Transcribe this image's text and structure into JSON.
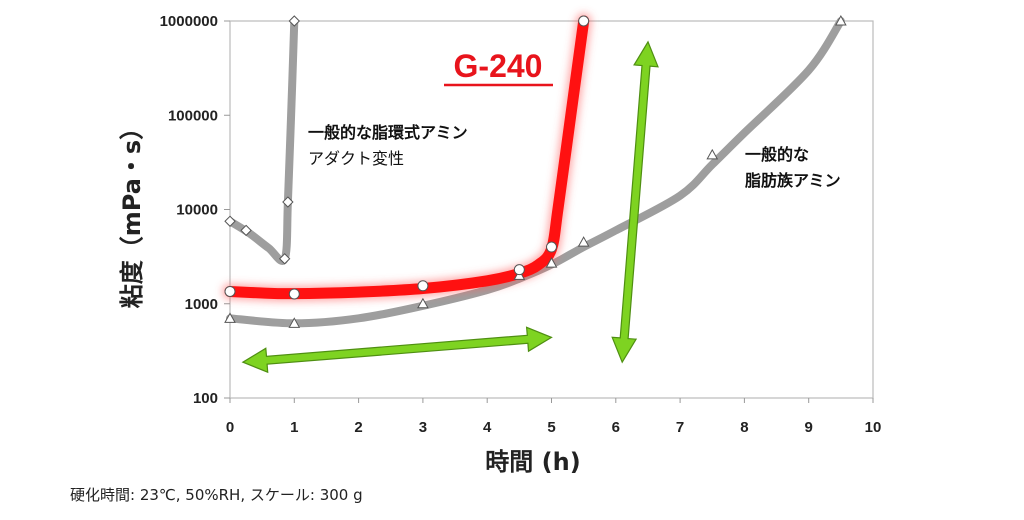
{
  "chart_data": {
    "type": "line",
    "xlabel": "時間 (h)",
    "ylabel": "粘度（mPa・s）",
    "xlim": [
      0,
      10
    ],
    "ylim": [
      100,
      1000000
    ],
    "yscale": "log",
    "x_ticks": [
      "0",
      "1",
      "2",
      "3",
      "4",
      "5",
      "6",
      "7",
      "8",
      "9",
      "10"
    ],
    "y_ticks": [
      "100",
      "1000",
      "10000",
      "100000",
      "1000000"
    ],
    "grid": false,
    "series": [
      {
        "name": "一般的な脂環式アミン アダクト変性",
        "label_lines": [
          "一般的な脂環式アミン",
          "アダクト変性"
        ],
        "color": "#9e9e9e",
        "marker": "diamond",
        "curve": [
          [
            0,
            7500
          ],
          [
            0.3,
            5600
          ],
          [
            0.6,
            3900
          ],
          [
            0.85,
            3000
          ],
          [
            0.9,
            12000
          ],
          [
            0.95,
            100000
          ],
          [
            1.0,
            1000000
          ]
        ],
        "points": [
          [
            0,
            7500
          ],
          [
            0.25,
            6000
          ],
          [
            0.85,
            3000
          ],
          [
            0.9,
            12000
          ],
          [
            1.0,
            1000000
          ]
        ]
      },
      {
        "name": "一般的な 脂肪族アミン",
        "label_lines": [
          "一般的な",
          "脂肪族アミン"
        ],
        "color": "#9e9e9e",
        "marker": "triangle",
        "curve": [
          [
            0,
            700
          ],
          [
            1,
            620
          ],
          [
            2,
            700
          ],
          [
            3,
            950
          ],
          [
            4,
            1400
          ],
          [
            4.5,
            1850
          ],
          [
            5,
            2600
          ],
          [
            5.5,
            4000
          ],
          [
            6,
            6000
          ],
          [
            7,
            14000
          ],
          [
            7.5,
            30000
          ],
          [
            8,
            65000
          ],
          [
            9,
            300000
          ],
          [
            9.5,
            1000000
          ]
        ],
        "points": [
          [
            0,
            700
          ],
          [
            1,
            620
          ],
          [
            3,
            1000
          ],
          [
            4.5,
            2000
          ],
          [
            5,
            2700
          ],
          [
            5.5,
            4500
          ],
          [
            7.5,
            38000
          ],
          [
            9.5,
            1000000
          ]
        ]
      },
      {
        "name": "G-240",
        "color": "#ff1111",
        "marker": "circle",
        "curve": [
          [
            0,
            1350
          ],
          [
            0.5,
            1300
          ],
          [
            1,
            1280
          ],
          [
            2,
            1330
          ],
          [
            3,
            1450
          ],
          [
            4,
            1750
          ],
          [
            4.5,
            2100
          ],
          [
            4.8,
            2600
          ],
          [
            5,
            3800
          ],
          [
            5.1,
            10000
          ],
          [
            5.3,
            100000
          ],
          [
            5.5,
            1000000
          ]
        ],
        "points": [
          [
            0,
            1350
          ],
          [
            1,
            1270
          ],
          [
            3,
            1550
          ],
          [
            4.5,
            2300
          ],
          [
            5,
            4000
          ],
          [
            5.5,
            1000000
          ]
        ]
      }
    ],
    "arrows": [
      {
        "from": [
          0.2,
          240
        ],
        "to": [
          5.0,
          440
        ],
        "color": "#7ed321"
      },
      {
        "from": [
          6.1,
          240
        ],
        "to": [
          6.5,
          600000
        ],
        "color": "#7ed321"
      }
    ]
  },
  "labels": {
    "g240": "G-240",
    "footnote": "硬化時間: 23℃, 50%RH, スケール: 300 g"
  }
}
